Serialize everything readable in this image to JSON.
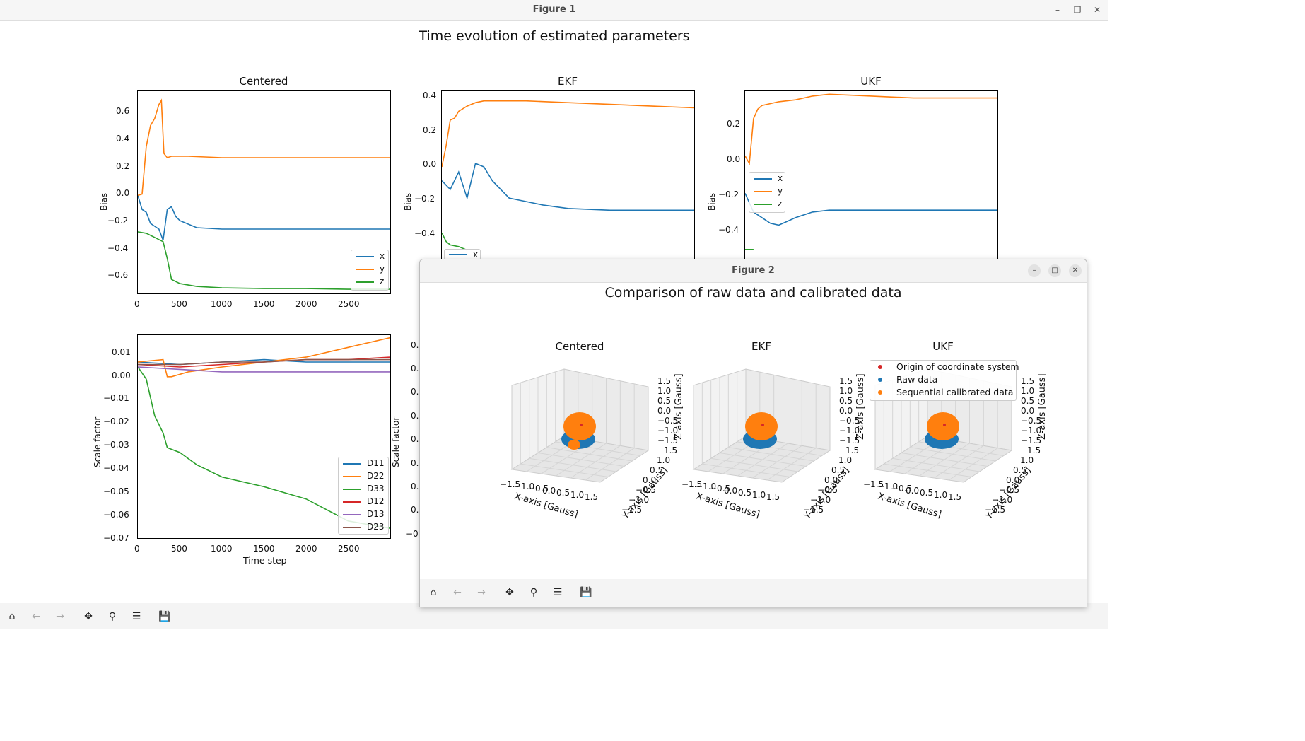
{
  "window": {
    "title": "Figure 1",
    "controls": [
      "minimize",
      "restore",
      "close"
    ]
  },
  "figure1": {
    "suptitle": "Time evolution of estimated parameters",
    "bias_panels": [
      {
        "title": "Centered",
        "ylabel": "Bias",
        "yticks": [
          "0.6",
          "0.4",
          "0.2",
          "0.0",
          "−0.2",
          "−0.4",
          "−0.6"
        ],
        "xticks": [
          "0",
          "500",
          "1000",
          "1500",
          "2000",
          "2500"
        ],
        "legend": [
          "x",
          "y",
          "z"
        ]
      },
      {
        "title": "EKF",
        "ylabel": "Bias",
        "yticks": [
          "0.4",
          "0.2",
          "0.0",
          "−0.2",
          "−0.4"
        ],
        "legend_visible": [
          "x"
        ]
      },
      {
        "title": "UKF",
        "ylabel": "Bias",
        "yticks": [
          "0.2",
          "0.0",
          "−0.2",
          "−0.4"
        ],
        "legend": [
          "x",
          "y",
          "z"
        ]
      }
    ],
    "scale_panel": {
      "ylabel": "Scale factor",
      "xlabel": "Time step",
      "yticks": [
        "0.01",
        "0.00",
        "−0.01",
        "−0.02",
        "−0.03",
        "−0.04",
        "−0.05",
        "−0.06",
        "−0.07"
      ],
      "xticks": [
        "0",
        "500",
        "1000",
        "1500",
        "2000",
        "2500"
      ],
      "legend": [
        "D11",
        "D22",
        "D33",
        "D12",
        "D13",
        "D23"
      ],
      "second_ylabel": "Scale factor",
      "second_yticks_partial": [
        "0.",
        "0.",
        "0.",
        "0.",
        "0.",
        "0.",
        "0.",
        "0.",
        "−0."
      ]
    }
  },
  "figure2": {
    "title": "Figure 2",
    "suptitle": "Comparison of raw data and calibrated data",
    "panels": [
      "Centered",
      "EKF",
      "UKF"
    ],
    "xlabel": "X-axis [Gauss]",
    "ylabel": "Y-axis [Gauss]",
    "zlabel": "Z-axis [Gauss]",
    "axis_ticks": [
      "−1.5",
      "−1.0",
      "−0.5",
      "0.0",
      "0.5",
      "1.0",
      "1.5"
    ],
    "legend": [
      "Origin of coordinate system",
      "Raw data",
      "Sequential calibrated data"
    ]
  },
  "toolbar": [
    "home-icon",
    "back-icon",
    "forward-icon",
    "pan-icon",
    "zoom-icon",
    "configure-icon",
    "save-icon"
  ],
  "colors": {
    "x": "#1f77b4",
    "y": "#ff7f0e",
    "z": "#2ca02c",
    "D12": "#d62728",
    "D13": "#9467bd",
    "D23": "#8c564b",
    "origin": "#d62728"
  },
  "chart_data": [
    {
      "type": "line",
      "title": "Centered",
      "ylabel": "Bias",
      "xlim": [
        0,
        3000
      ],
      "ylim": [
        -0.7,
        0.75
      ],
      "series": [
        {
          "name": "x",
          "x": [
            0,
            50,
            100,
            150,
            200,
            250,
            300,
            350,
            400,
            450,
            500,
            700,
            1000,
            1500,
            2000,
            2500,
            3000
          ],
          "values": [
            0.0,
            -0.1,
            -0.12,
            -0.2,
            -0.22,
            -0.24,
            -0.32,
            -0.1,
            -0.08,
            -0.15,
            -0.18,
            -0.23,
            -0.24,
            -0.24,
            -0.24,
            -0.24,
            -0.24
          ]
        },
        {
          "name": "y",
          "x": [
            0,
            50,
            100,
            150,
            200,
            250,
            280,
            310,
            350,
            400,
            600,
            1000,
            1500,
            2000,
            2500,
            3000
          ],
          "values": [
            0.0,
            0.01,
            0.35,
            0.5,
            0.55,
            0.65,
            0.68,
            0.3,
            0.27,
            0.28,
            0.28,
            0.27,
            0.27,
            0.27,
            0.27,
            0.27
          ]
        },
        {
          "name": "z",
          "x": [
            0,
            100,
            200,
            300,
            350,
            400,
            500,
            700,
            1000,
            1500,
            2000,
            2500,
            3000
          ],
          "values": [
            -0.26,
            -0.27,
            -0.3,
            -0.33,
            -0.45,
            -0.6,
            -0.63,
            -0.65,
            -0.66,
            -0.665,
            -0.665,
            -0.67,
            -0.67
          ]
        }
      ]
    },
    {
      "type": "line",
      "title": "EKF",
      "ylabel": "Bias",
      "xlim": [
        0,
        3000
      ],
      "ylim": [
        -0.55,
        0.42
      ],
      "series": [
        {
          "name": "x",
          "x": [
            0,
            100,
            200,
            300,
            400,
            500,
            600,
            700,
            800,
            1000,
            1200,
            1500,
            2000,
            2500,
            3000
          ],
          "values": [
            -0.1,
            -0.15,
            -0.05,
            -0.2,
            0.0,
            -0.02,
            -0.1,
            -0.15,
            -0.2,
            -0.22,
            -0.24,
            -0.26,
            -0.27,
            -0.27,
            -0.27
          ]
        },
        {
          "name": "y",
          "x": [
            0,
            50,
            100,
            150,
            200,
            300,
            400,
            500,
            700,
            1000,
            1500,
            2000,
            2500,
            3000
          ],
          "values": [
            -0.02,
            0.1,
            0.25,
            0.26,
            0.3,
            0.33,
            0.35,
            0.36,
            0.36,
            0.36,
            0.35,
            0.34,
            0.33,
            0.32
          ]
        },
        {
          "name": "z",
          "x": [
            0,
            50,
            100,
            200,
            300
          ],
          "values": [
            -0.4,
            -0.45,
            -0.47,
            -0.48,
            -0.5
          ]
        }
      ]
    },
    {
      "type": "line",
      "title": "UKF",
      "ylabel": "Bias",
      "xlim": [
        0,
        3000
      ],
      "ylim": [
        -0.55,
        0.35
      ],
      "series": [
        {
          "name": "x",
          "x": [
            0,
            100,
            200,
            300,
            400,
            500,
            600,
            800,
            1000,
            1500,
            2000,
            2500,
            3000
          ],
          "values": [
            -0.2,
            -0.3,
            -0.33,
            -0.36,
            -0.37,
            -0.35,
            -0.33,
            -0.3,
            -0.29,
            -0.29,
            -0.29,
            -0.29,
            -0.29
          ]
        },
        {
          "name": "y",
          "x": [
            0,
            50,
            100,
            150,
            200,
            400,
            600,
            800,
            1000,
            1500,
            2000,
            2500,
            3000
          ],
          "values": [
            0.0,
            -0.04,
            0.2,
            0.25,
            0.27,
            0.29,
            0.3,
            0.32,
            0.33,
            0.32,
            0.31,
            0.31,
            0.31
          ]
        },
        {
          "name": "z",
          "x": [
            0,
            50,
            100
          ],
          "values": [
            -0.5,
            -0.5,
            -0.5
          ]
        }
      ]
    },
    {
      "type": "line",
      "title": "",
      "ylabel": "Scale factor",
      "xlabel": "Time step",
      "xlim": [
        0,
        3000
      ],
      "ylim": [
        -0.07,
        0.013
      ],
      "series": [
        {
          "name": "D11",
          "x": [
            0,
            500,
            1000,
            1500,
            2000,
            2500,
            3000
          ],
          "values": [
            0.002,
            0.001,
            0.002,
            0.003,
            0.002,
            0.002,
            0.002
          ]
        },
        {
          "name": "D22",
          "x": [
            0,
            300,
            350,
            400,
            600,
            1000,
            1500,
            2000,
            2500,
            3000
          ],
          "values": [
            0.002,
            0.003,
            -0.004,
            -0.004,
            -0.002,
            0.0,
            0.002,
            0.004,
            0.008,
            0.012
          ]
        },
        {
          "name": "D33",
          "x": [
            0,
            100,
            200,
            300,
            350,
            500,
            700,
            1000,
            1500,
            2000,
            2500,
            3000
          ],
          "values": [
            0.0,
            -0.005,
            -0.02,
            -0.027,
            -0.033,
            -0.035,
            -0.04,
            -0.045,
            -0.049,
            -0.054,
            -0.063,
            -0.066
          ]
        },
        {
          "name": "D12",
          "x": [
            0,
            500,
            1000,
            1500,
            2000,
            2500,
            3000
          ],
          "values": [
            0.001,
            0.0,
            0.001,
            0.002,
            0.003,
            0.003,
            0.004
          ]
        },
        {
          "name": "D13",
          "x": [
            0,
            500,
            1000,
            1500,
            2000,
            2500,
            3000
          ],
          "values": [
            0.0,
            -0.001,
            -0.002,
            -0.002,
            -0.002,
            -0.002,
            -0.002
          ]
        },
        {
          "name": "D23",
          "x": [
            0,
            500,
            1000,
            1500,
            2000,
            2500,
            3000
          ],
          "values": [
            0.001,
            0.001,
            0.002,
            0.002,
            0.003,
            0.003,
            0.003
          ]
        }
      ]
    }
  ]
}
